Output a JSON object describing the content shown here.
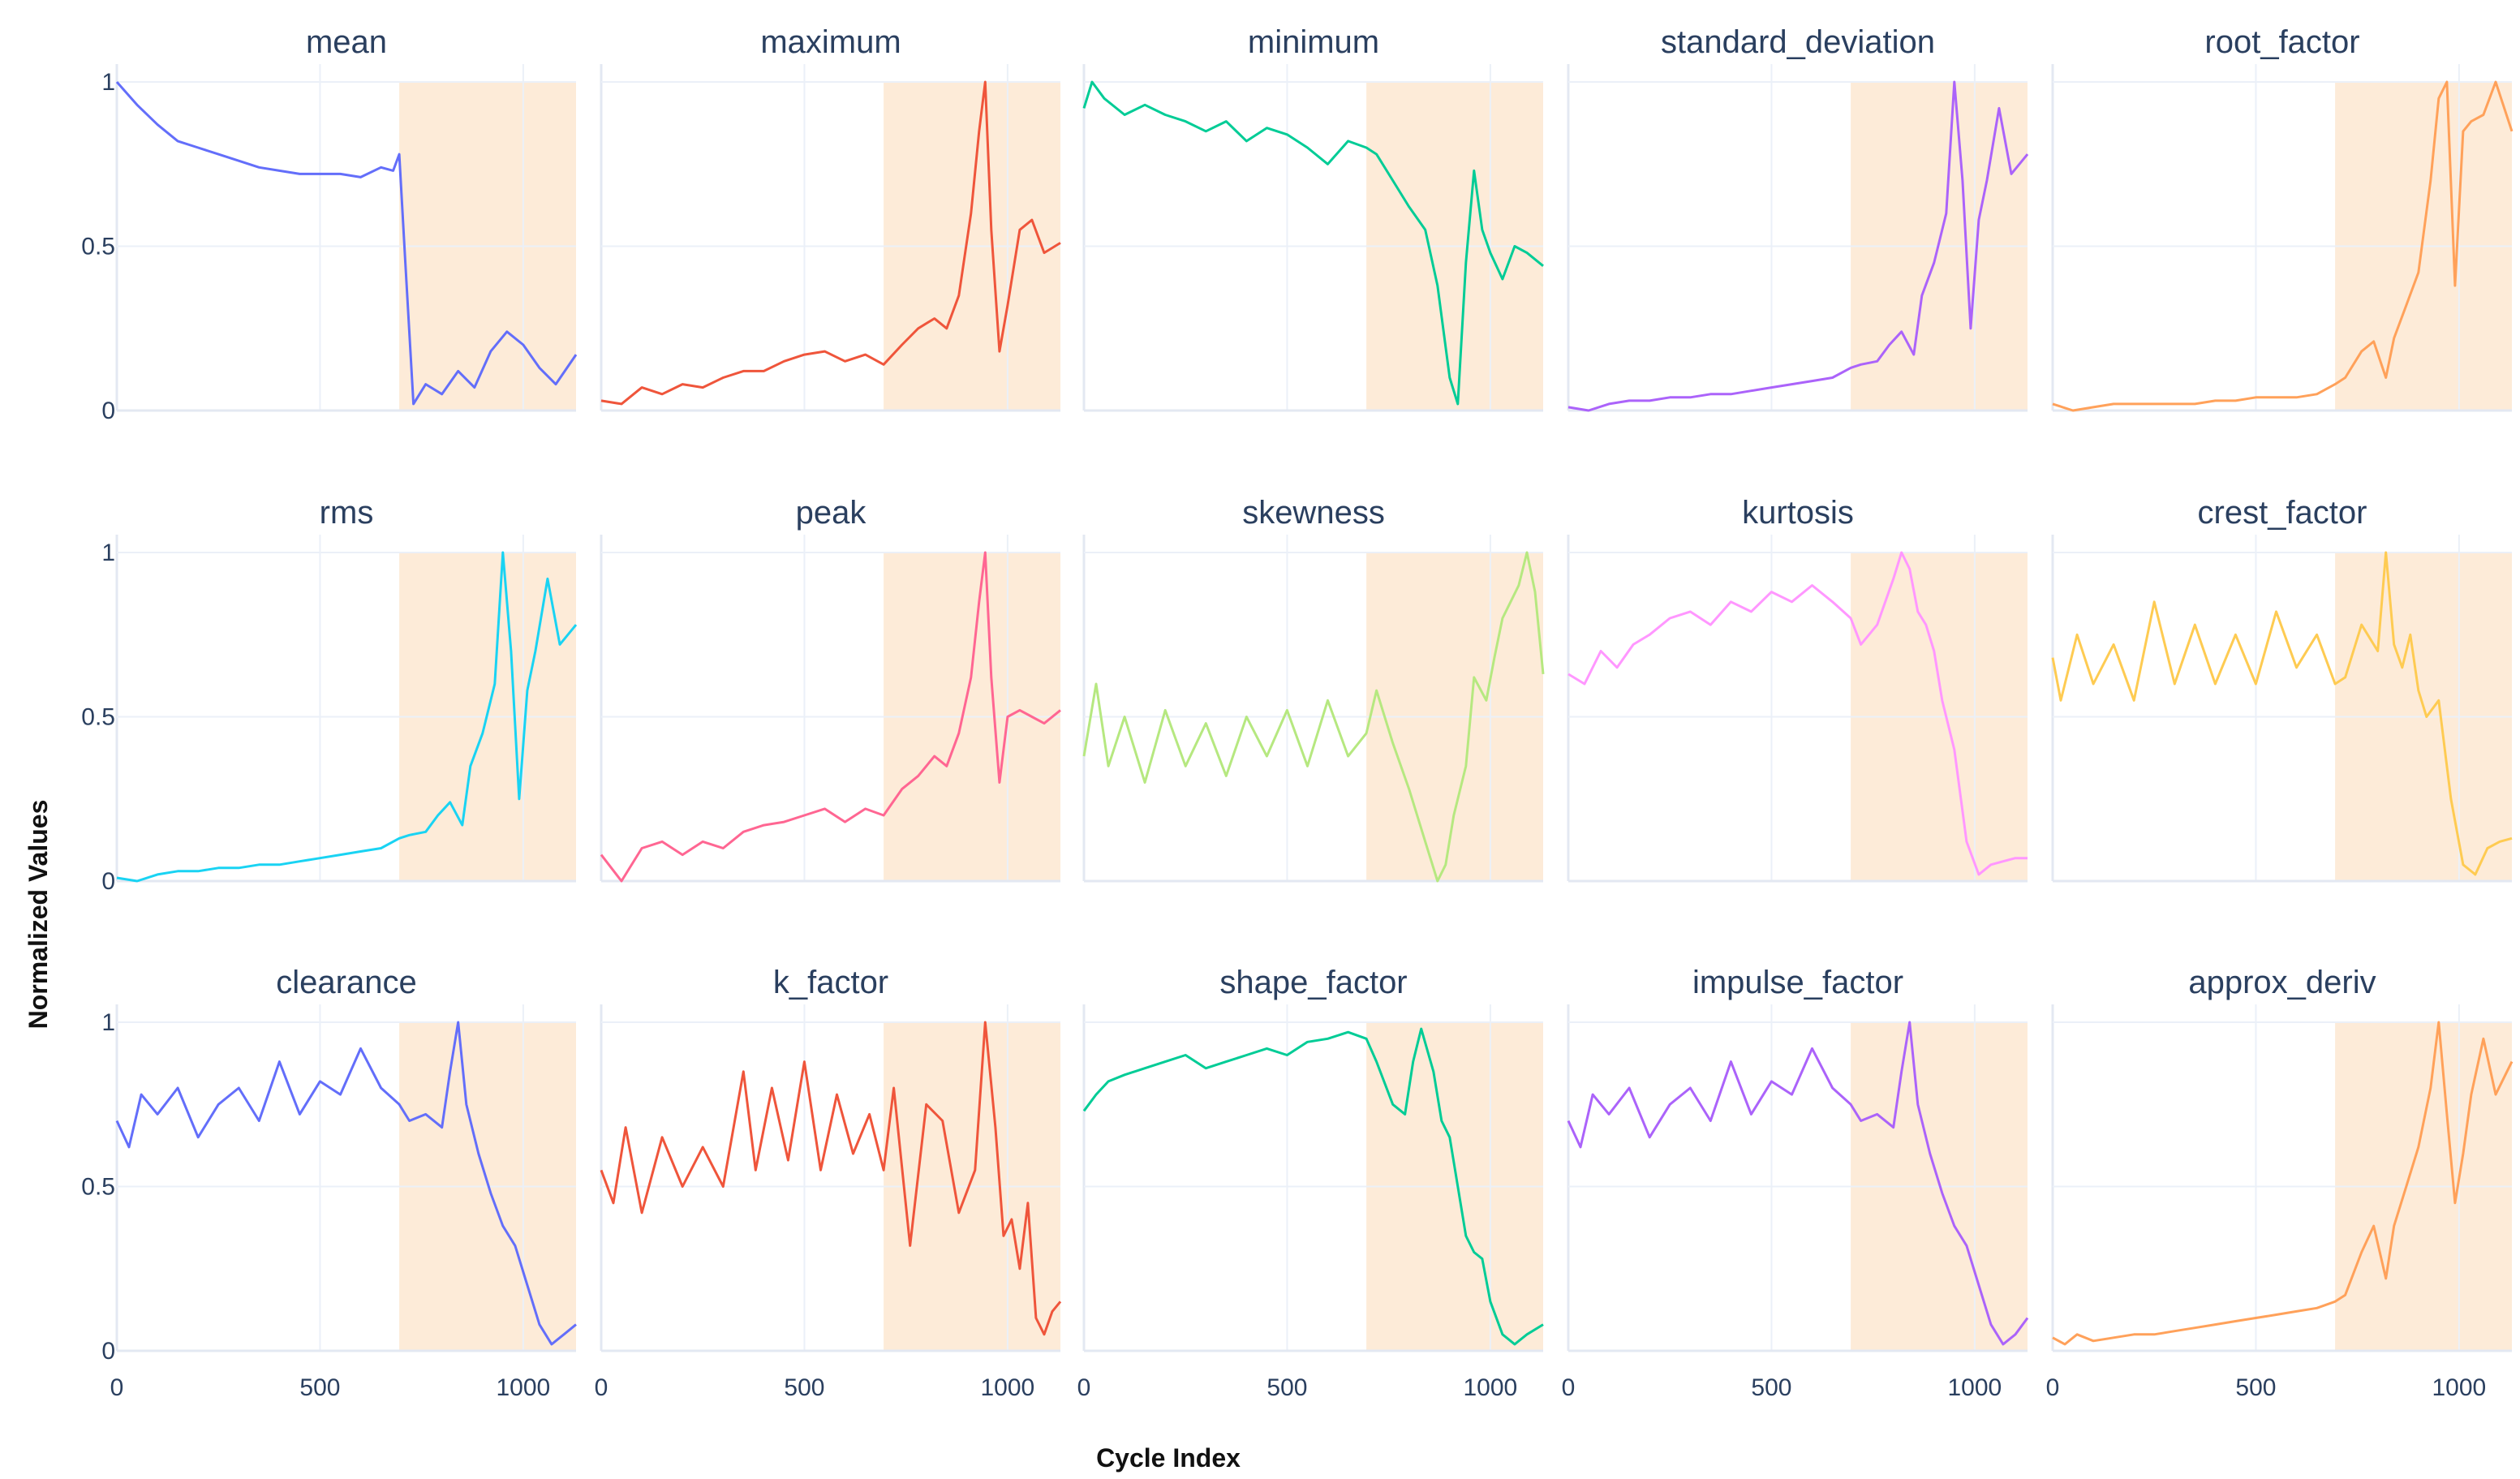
{
  "figure": {
    "xlabel": "Cycle Index",
    "ylabel": "Normalized Values",
    "shade_color": "#fdebd8"
  },
  "chart_data": {
    "type": "line",
    "grid": true,
    "layout": "3x5",
    "xlim": [
      0,
      1130
    ],
    "ylim": [
      0,
      1
    ],
    "xticks": [
      0,
      500,
      1000
    ],
    "yticks": [
      0,
      0.5,
      1
    ],
    "ytick_labels": [
      "0",
      "0.5",
      "1"
    ],
    "shaded_region": {
      "x0": 695,
      "x1": 1130
    },
    "panels": [
      {
        "title": "mean",
        "color": "#636efa",
        "series": {
          "x": [
            0,
            50,
            100,
            150,
            200,
            250,
            300,
            350,
            400,
            450,
            500,
            550,
            600,
            650,
            680,
            695,
            710,
            730,
            760,
            800,
            840,
            880,
            920,
            960,
            1000,
            1040,
            1080,
            1130
          ],
          "y": [
            1.0,
            0.93,
            0.87,
            0.82,
            0.8,
            0.78,
            0.76,
            0.74,
            0.73,
            0.72,
            0.72,
            0.72,
            0.71,
            0.74,
            0.73,
            0.78,
            0.45,
            0.02,
            0.08,
            0.05,
            0.12,
            0.07,
            0.18,
            0.24,
            0.2,
            0.13,
            0.08,
            0.17
          ]
        }
      },
      {
        "title": "maximum",
        "color": "#ef553b",
        "series": {
          "x": [
            0,
            50,
            100,
            150,
            200,
            250,
            300,
            350,
            400,
            450,
            500,
            550,
            600,
            650,
            695,
            740,
            780,
            820,
            850,
            880,
            910,
            930,
            945,
            960,
            980,
            1000,
            1030,
            1060,
            1090,
            1130
          ],
          "y": [
            0.03,
            0.02,
            0.07,
            0.05,
            0.08,
            0.07,
            0.1,
            0.12,
            0.12,
            0.15,
            0.17,
            0.18,
            0.15,
            0.17,
            0.14,
            0.2,
            0.25,
            0.28,
            0.25,
            0.35,
            0.6,
            0.85,
            1.0,
            0.55,
            0.18,
            0.32,
            0.55,
            0.58,
            0.48,
            0.51
          ]
        }
      },
      {
        "title": "minimum",
        "color": "#00cc96",
        "series": {
          "x": [
            0,
            20,
            50,
            100,
            150,
            200,
            250,
            300,
            350,
            400,
            450,
            500,
            550,
            600,
            650,
            695,
            720,
            760,
            800,
            840,
            870,
            900,
            920,
            940,
            960,
            980,
            1000,
            1030,
            1060,
            1090,
            1130
          ],
          "y": [
            0.92,
            1.0,
            0.95,
            0.9,
            0.93,
            0.9,
            0.88,
            0.85,
            0.88,
            0.82,
            0.86,
            0.84,
            0.8,
            0.75,
            0.82,
            0.8,
            0.78,
            0.7,
            0.62,
            0.55,
            0.38,
            0.1,
            0.02,
            0.45,
            0.73,
            0.55,
            0.48,
            0.4,
            0.5,
            0.48,
            0.44
          ]
        }
      },
      {
        "title": "standard_deviation",
        "color": "#ab63fa",
        "series": {
          "x": [
            0,
            50,
            100,
            150,
            200,
            250,
            300,
            350,
            400,
            450,
            500,
            550,
            600,
            650,
            695,
            720,
            760,
            790,
            820,
            850,
            870,
            900,
            930,
            950,
            970,
            990,
            1010,
            1030,
            1060,
            1090,
            1130
          ],
          "y": [
            0.01,
            0.0,
            0.02,
            0.03,
            0.03,
            0.04,
            0.04,
            0.05,
            0.05,
            0.06,
            0.07,
            0.08,
            0.09,
            0.1,
            0.13,
            0.14,
            0.15,
            0.2,
            0.24,
            0.17,
            0.35,
            0.45,
            0.6,
            1.0,
            0.7,
            0.25,
            0.58,
            0.7,
            0.92,
            0.72,
            0.78
          ]
        }
      },
      {
        "title": "root_factor",
        "color": "#ffa15a",
        "series": {
          "x": [
            0,
            50,
            100,
            150,
            200,
            250,
            300,
            350,
            400,
            450,
            500,
            550,
            600,
            650,
            695,
            720,
            760,
            790,
            820,
            840,
            870,
            900,
            930,
            950,
            970,
            990,
            1010,
            1030,
            1060,
            1090,
            1130
          ],
          "y": [
            0.02,
            0.0,
            0.01,
            0.02,
            0.02,
            0.02,
            0.02,
            0.02,
            0.03,
            0.03,
            0.04,
            0.04,
            0.04,
            0.05,
            0.08,
            0.1,
            0.18,
            0.21,
            0.1,
            0.22,
            0.32,
            0.42,
            0.7,
            0.95,
            1.0,
            0.38,
            0.85,
            0.88,
            0.9,
            1.0,
            0.85
          ]
        }
      },
      {
        "title": "rms",
        "color": "#19d3f3",
        "series": {
          "x": [
            0,
            50,
            100,
            150,
            200,
            250,
            300,
            350,
            400,
            450,
            500,
            550,
            600,
            650,
            695,
            720,
            760,
            790,
            820,
            850,
            870,
            900,
            930,
            950,
            970,
            990,
            1010,
            1030,
            1060,
            1090,
            1130
          ],
          "y": [
            0.01,
            0.0,
            0.02,
            0.03,
            0.03,
            0.04,
            0.04,
            0.05,
            0.05,
            0.06,
            0.07,
            0.08,
            0.09,
            0.1,
            0.13,
            0.14,
            0.15,
            0.2,
            0.24,
            0.17,
            0.35,
            0.45,
            0.6,
            1.0,
            0.7,
            0.25,
            0.58,
            0.7,
            0.92,
            0.72,
            0.78
          ]
        }
      },
      {
        "title": "peak",
        "color": "#ff6692",
        "series": {
          "x": [
            0,
            50,
            100,
            150,
            200,
            250,
            300,
            350,
            400,
            450,
            500,
            550,
            600,
            650,
            695,
            740,
            780,
            820,
            850,
            880,
            910,
            930,
            945,
            960,
            980,
            1000,
            1030,
            1060,
            1090,
            1130
          ],
          "y": [
            0.08,
            0.0,
            0.1,
            0.12,
            0.08,
            0.12,
            0.1,
            0.15,
            0.17,
            0.18,
            0.2,
            0.22,
            0.18,
            0.22,
            0.2,
            0.28,
            0.32,
            0.38,
            0.35,
            0.45,
            0.62,
            0.85,
            1.0,
            0.62,
            0.3,
            0.5,
            0.52,
            0.5,
            0.48,
            0.52
          ]
        }
      },
      {
        "title": "skewness",
        "color": "#b6e880",
        "series": {
          "x": [
            0,
            30,
            60,
            100,
            150,
            200,
            250,
            300,
            350,
            400,
            450,
            500,
            550,
            600,
            650,
            695,
            720,
            760,
            800,
            840,
            870,
            890,
            910,
            940,
            960,
            990,
            1010,
            1030,
            1050,
            1070,
            1090,
            1110,
            1130
          ],
          "y": [
            0.38,
            0.6,
            0.35,
            0.5,
            0.3,
            0.52,
            0.35,
            0.48,
            0.32,
            0.5,
            0.38,
            0.52,
            0.35,
            0.55,
            0.38,
            0.45,
            0.58,
            0.42,
            0.28,
            0.12,
            0.0,
            0.05,
            0.2,
            0.35,
            0.62,
            0.55,
            0.68,
            0.8,
            0.85,
            0.9,
            1.0,
            0.88,
            0.63
          ]
        }
      },
      {
        "title": "kurtosis",
        "color": "#ff97ff",
        "series": {
          "x": [
            0,
            40,
            80,
            120,
            160,
            200,
            250,
            300,
            350,
            400,
            450,
            500,
            550,
            600,
            650,
            695,
            720,
            760,
            800,
            820,
            840,
            860,
            880,
            900,
            920,
            950,
            980,
            1010,
            1040,
            1070,
            1100,
            1130
          ],
          "y": [
            0.63,
            0.6,
            0.7,
            0.65,
            0.72,
            0.75,
            0.8,
            0.82,
            0.78,
            0.85,
            0.82,
            0.88,
            0.85,
            0.9,
            0.85,
            0.8,
            0.72,
            0.78,
            0.92,
            1.0,
            0.95,
            0.82,
            0.78,
            0.7,
            0.55,
            0.4,
            0.12,
            0.02,
            0.05,
            0.06,
            0.07,
            0.07
          ]
        }
      },
      {
        "title": "crest_factor",
        "color": "#fecb52",
        "series": {
          "x": [
            0,
            20,
            60,
            100,
            150,
            200,
            250,
            300,
            350,
            400,
            450,
            500,
            550,
            600,
            650,
            695,
            720,
            760,
            800,
            820,
            840,
            860,
            880,
            900,
            920,
            950,
            980,
            1010,
            1040,
            1070,
            1100,
            1130
          ],
          "y": [
            0.68,
            0.55,
            0.75,
            0.6,
            0.72,
            0.55,
            0.85,
            0.6,
            0.78,
            0.6,
            0.75,
            0.6,
            0.82,
            0.65,
            0.75,
            0.6,
            0.62,
            0.78,
            0.7,
            1.0,
            0.72,
            0.65,
            0.75,
            0.58,
            0.5,
            0.55,
            0.25,
            0.05,
            0.02,
            0.1,
            0.12,
            0.13
          ]
        }
      },
      {
        "title": "clearance",
        "color": "#636efa",
        "series": {
          "x": [
            0,
            30,
            60,
            100,
            150,
            200,
            250,
            300,
            350,
            400,
            450,
            500,
            550,
            600,
            650,
            695,
            720,
            760,
            800,
            820,
            840,
            860,
            890,
            920,
            950,
            980,
            1010,
            1040,
            1070,
            1100,
            1130
          ],
          "y": [
            0.7,
            0.62,
            0.78,
            0.72,
            0.8,
            0.65,
            0.75,
            0.8,
            0.7,
            0.88,
            0.72,
            0.82,
            0.78,
            0.92,
            0.8,
            0.75,
            0.7,
            0.72,
            0.68,
            0.85,
            1.0,
            0.75,
            0.6,
            0.48,
            0.38,
            0.32,
            0.2,
            0.08,
            0.02,
            0.05,
            0.08
          ]
        }
      },
      {
        "title": "k_factor",
        "color": "#ef553b",
        "series": {
          "x": [
            0,
            30,
            60,
            100,
            150,
            200,
            250,
            300,
            350,
            380,
            420,
            460,
            500,
            540,
            580,
            620,
            660,
            695,
            720,
            760,
            800,
            840,
            880,
            920,
            945,
            970,
            990,
            1010,
            1030,
            1050,
            1070,
            1090,
            1110,
            1130
          ],
          "y": [
            0.55,
            0.45,
            0.68,
            0.42,
            0.65,
            0.5,
            0.62,
            0.5,
            0.85,
            0.55,
            0.8,
            0.58,
            0.88,
            0.55,
            0.78,
            0.6,
            0.72,
            0.55,
            0.8,
            0.32,
            0.75,
            0.7,
            0.42,
            0.55,
            1.0,
            0.68,
            0.35,
            0.4,
            0.25,
            0.45,
            0.1,
            0.05,
            0.12,
            0.15
          ]
        }
      },
      {
        "title": "shape_factor",
        "color": "#00cc96",
        "series": {
          "x": [
            0,
            30,
            60,
            100,
            150,
            200,
            250,
            300,
            350,
            400,
            450,
            500,
            550,
            600,
            650,
            695,
            720,
            760,
            790,
            810,
            830,
            860,
            880,
            900,
            920,
            940,
            960,
            980,
            1000,
            1030,
            1060,
            1090,
            1130
          ],
          "y": [
            0.73,
            0.78,
            0.82,
            0.84,
            0.86,
            0.88,
            0.9,
            0.86,
            0.88,
            0.9,
            0.92,
            0.9,
            0.94,
            0.95,
            0.97,
            0.95,
            0.88,
            0.75,
            0.72,
            0.88,
            0.98,
            0.85,
            0.7,
            0.65,
            0.5,
            0.35,
            0.3,
            0.28,
            0.15,
            0.05,
            0.02,
            0.05,
            0.08
          ]
        }
      },
      {
        "title": "impulse_factor",
        "color": "#ab63fa",
        "series": {
          "x": [
            0,
            30,
            60,
            100,
            150,
            200,
            250,
            300,
            350,
            400,
            450,
            500,
            550,
            600,
            650,
            695,
            720,
            760,
            800,
            820,
            840,
            860,
            890,
            920,
            950,
            980,
            1010,
            1040,
            1070,
            1100,
            1130
          ],
          "y": [
            0.7,
            0.62,
            0.78,
            0.72,
            0.8,
            0.65,
            0.75,
            0.8,
            0.7,
            0.88,
            0.72,
            0.82,
            0.78,
            0.92,
            0.8,
            0.75,
            0.7,
            0.72,
            0.68,
            0.85,
            1.0,
            0.75,
            0.6,
            0.48,
            0.38,
            0.32,
            0.2,
            0.08,
            0.02,
            0.05,
            0.1
          ]
        }
      },
      {
        "title": "approx_deriv",
        "color": "#ffa15a",
        "series": {
          "x": [
            0,
            30,
            60,
            100,
            150,
            200,
            250,
            300,
            350,
            400,
            450,
            500,
            550,
            600,
            650,
            695,
            720,
            760,
            790,
            820,
            840,
            870,
            900,
            930,
            950,
            970,
            990,
            1010,
            1030,
            1060,
            1090,
            1130
          ],
          "y": [
            0.04,
            0.02,
            0.05,
            0.03,
            0.04,
            0.05,
            0.05,
            0.06,
            0.07,
            0.08,
            0.09,
            0.1,
            0.11,
            0.12,
            0.13,
            0.15,
            0.17,
            0.3,
            0.38,
            0.22,
            0.38,
            0.5,
            0.62,
            0.8,
            1.0,
            0.72,
            0.45,
            0.6,
            0.78,
            0.95,
            0.78,
            0.88
          ]
        }
      }
    ]
  }
}
